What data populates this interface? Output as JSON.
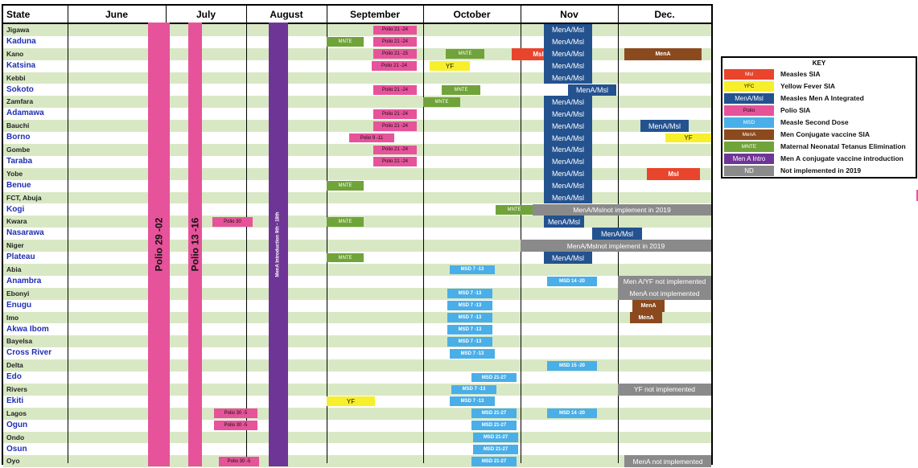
{
  "headers": {
    "state": "State",
    "months": [
      "June",
      "July",
      "August",
      "September",
      "October",
      "Nov",
      "Dec."
    ]
  },
  "states": [
    {
      "name": "Jigawa",
      "blue": false
    },
    {
      "name": "Kaduna",
      "blue": true
    },
    {
      "name": "Kano",
      "blue": false
    },
    {
      "name": "Katsina",
      "blue": true
    },
    {
      "name": "Kebbi",
      "blue": false
    },
    {
      "name": "Sokoto",
      "blue": true
    },
    {
      "name": "Zamfara",
      "blue": false
    },
    {
      "name": "Adamawa",
      "blue": true
    },
    {
      "name": "Bauchi",
      "blue": false
    },
    {
      "name": "Borno",
      "blue": true
    },
    {
      "name": "Gombe",
      "blue": false
    },
    {
      "name": "Taraba",
      "blue": true
    },
    {
      "name": "Yobe",
      "blue": false
    },
    {
      "name": "Benue",
      "blue": true
    },
    {
      "name": "FCT, Abuja",
      "blue": false
    },
    {
      "name": "Kogi",
      "blue": true
    },
    {
      "name": "Kwara",
      "blue": false
    },
    {
      "name": "Nasarawa",
      "blue": true
    },
    {
      "name": "Niger",
      "blue": false
    },
    {
      "name": "Plateau",
      "blue": true
    },
    {
      "name": "Abia",
      "blue": false
    },
    {
      "name": "Anambra",
      "blue": true
    },
    {
      "name": "Ebonyi",
      "blue": false
    },
    {
      "name": "Enugu",
      "blue": true
    },
    {
      "name": "Imo",
      "blue": false
    },
    {
      "name": "Akwa Ibom",
      "blue": true
    },
    {
      "name": "Bayelsa",
      "blue": false
    },
    {
      "name": "Cross River",
      "blue": true
    },
    {
      "name": "Delta",
      "blue": false
    },
    {
      "name": "Edo",
      "blue": true
    },
    {
      "name": "Rivers",
      "blue": false
    },
    {
      "name": "Ekiti",
      "blue": true
    },
    {
      "name": "Lagos",
      "blue": false
    },
    {
      "name": "Ogun",
      "blue": true
    },
    {
      "name": "Ondo",
      "blue": false
    },
    {
      "name": "Osun",
      "blue": true
    },
    {
      "name": "Oyo",
      "blue": false
    }
  ],
  "vertical_bars": [
    {
      "label": "Polio 29 -02",
      "type": "polio"
    },
    {
      "label": "Polio 13 -16",
      "type": "polio"
    },
    {
      "label": "MenA Introduction 9th - 18th",
      "type": "menintro"
    }
  ],
  "events": [
    {
      "row": 0,
      "type": "polio",
      "label": "Polio 21 -24",
      "month": "September"
    },
    {
      "row": 0,
      "type": "mena",
      "label": "MenA/Msl",
      "month": "Nov"
    },
    {
      "row": 1,
      "type": "mnte",
      "label": "MNTE",
      "month": "September"
    },
    {
      "row": 1,
      "type": "polio",
      "label": "Polio 21 -24",
      "month": "September"
    },
    {
      "row": 1,
      "type": "mena",
      "label": "MenA/Msl",
      "month": "Nov"
    },
    {
      "row": 2,
      "type": "polio",
      "label": "Polio 21 -15",
      "month": "September"
    },
    {
      "row": 2,
      "type": "mnte",
      "label": "MNTE",
      "month": "October"
    },
    {
      "row": 2,
      "type": "measles",
      "label": "Msl",
      "month": "Nov"
    },
    {
      "row": 2,
      "type": "mena",
      "label": "MenA/Msl",
      "month": "Nov"
    },
    {
      "row": 2,
      "type": "menconj",
      "label": "MenA",
      "month": "Dec."
    },
    {
      "row": 3,
      "type": "polio",
      "label": "Polio 21 -24",
      "month": "September"
    },
    {
      "row": 3,
      "type": "yf",
      "label": "YF",
      "month": "October"
    },
    {
      "row": 3,
      "type": "mena",
      "label": "MenA/Msl",
      "month": "Nov"
    },
    {
      "row": 4,
      "type": "mena",
      "label": "MenA/Msl",
      "month": "Nov"
    },
    {
      "row": 5,
      "type": "polio",
      "label": "Polio 21 -24",
      "month": "September"
    },
    {
      "row": 5,
      "type": "mnte",
      "label": "MNTE",
      "month": "October"
    },
    {
      "row": 5,
      "type": "mena",
      "label": "MenA/Msl",
      "month": "Nov"
    },
    {
      "row": 6,
      "type": "mnte",
      "label": "MNTE",
      "month": "October"
    },
    {
      "row": 6,
      "type": "mena",
      "label": "MenA/Msl",
      "month": "Nov"
    },
    {
      "row": 7,
      "type": "polio",
      "label": "Polio 21 -24",
      "month": "September"
    },
    {
      "row": 7,
      "type": "mena",
      "label": "MenA/Msl",
      "month": "Nov"
    },
    {
      "row": 8,
      "type": "polio",
      "label": "Polio 21 -24",
      "month": "September"
    },
    {
      "row": 8,
      "type": "mena",
      "label": "MenA/Msl",
      "month": "Nov"
    },
    {
      "row": 8,
      "type": "mena",
      "label": "MenA/Msl",
      "month": "Dec."
    },
    {
      "row": 9,
      "type": "polio",
      "label": "Polio 9 -11",
      "month": "September"
    },
    {
      "row": 9,
      "type": "mena",
      "label": "MenA/Msl",
      "month": "Nov"
    },
    {
      "row": 9,
      "type": "yf",
      "label": "YF",
      "month": "Dec."
    },
    {
      "row": 10,
      "type": "polio",
      "label": "Polio 21 -24",
      "month": "September"
    },
    {
      "row": 10,
      "type": "mena",
      "label": "MenA/Msl",
      "month": "Nov"
    },
    {
      "row": 11,
      "type": "polio",
      "label": "Polio 21 -24",
      "month": "September"
    },
    {
      "row": 11,
      "type": "mena",
      "label": "MenA/Msl",
      "month": "Nov"
    },
    {
      "row": 12,
      "type": "mena",
      "label": "MenA/Msl",
      "month": "Nov"
    },
    {
      "row": 12,
      "type": "measles",
      "label": "Msl",
      "month": "Dec."
    },
    {
      "row": 13,
      "type": "mnte",
      "label": "MNTE",
      "month": "September"
    },
    {
      "row": 13,
      "type": "mena",
      "label": "MenA/Msl",
      "month": "Nov"
    },
    {
      "row": 14,
      "type": "mena",
      "label": "MenA/Msl",
      "month": "Nov"
    },
    {
      "row": 15,
      "type": "mnte",
      "label": "MNTE",
      "month": "October"
    },
    {
      "row": 15,
      "type": "nd",
      "label": "MenA/Mslnot implement in 2019",
      "month": "Nov"
    },
    {
      "row": 16,
      "type": "polio",
      "label": "Polio 30",
      "month": "July"
    },
    {
      "row": 16,
      "type": "mnte",
      "label": "MNTE",
      "month": "September"
    },
    {
      "row": 16,
      "type": "mena",
      "label": "MenA/Msl",
      "month": "Nov"
    },
    {
      "row": 17,
      "type": "mena",
      "label": "MenA/Msl",
      "month": "Nov"
    },
    {
      "row": 18,
      "type": "nd",
      "label": "MenA/Mslnot implement in 2019",
      "month": "Nov"
    },
    {
      "row": 19,
      "type": "mnte",
      "label": "MNTE",
      "month": "September"
    },
    {
      "row": 19,
      "type": "mena",
      "label": "MenA/Msl",
      "month": "Nov"
    },
    {
      "row": 20,
      "type": "msd",
      "label": "MSD 7 -13",
      "month": "October"
    },
    {
      "row": 21,
      "type": "msd",
      "label": "MSD 14 -20",
      "month": "Nov"
    },
    {
      "row": 21,
      "type": "nd",
      "label": "Men A/YF not implemented",
      "month": "Dec."
    },
    {
      "row": 22,
      "type": "msd",
      "label": "MSD 7 -13",
      "month": "October"
    },
    {
      "row": 22,
      "type": "nd",
      "label": "MenA not implemented",
      "month": "Dec."
    },
    {
      "row": 23,
      "type": "msd",
      "label": "MSD 7 -13",
      "month": "October"
    },
    {
      "row": 23,
      "type": "menconj",
      "label": "MenA",
      "month": "Dec."
    },
    {
      "row": 24,
      "type": "msd",
      "label": "MSD 7 -13",
      "month": "October"
    },
    {
      "row": 24,
      "type": "menconj",
      "label": "MenA",
      "month": "Dec."
    },
    {
      "row": 25,
      "type": "msd",
      "label": "MSD 7 -13",
      "month": "October"
    },
    {
      "row": 26,
      "type": "msd",
      "label": "MSD 7 -13",
      "month": "October"
    },
    {
      "row": 27,
      "type": "msd",
      "label": "MSD 7 -13",
      "month": "October"
    },
    {
      "row": 28,
      "type": "msd",
      "label": "MSD 15 -20",
      "month": "Nov"
    },
    {
      "row": 29,
      "type": "msd",
      "label": "MSD 21-27",
      "month": "October"
    },
    {
      "row": 30,
      "type": "msd",
      "label": "MSD 7 -13",
      "month": "October"
    },
    {
      "row": 30,
      "type": "nd",
      "label": "YF not implemented",
      "month": "Dec."
    },
    {
      "row": 31,
      "type": "yf",
      "label": "YF",
      "month": "September"
    },
    {
      "row": 31,
      "type": "msd",
      "label": "MSD 7 -13",
      "month": "October"
    },
    {
      "row": 32,
      "type": "polio",
      "label": "Polio 30 -5",
      "month": "July"
    },
    {
      "row": 32,
      "type": "msd",
      "label": "MSD 21-27",
      "month": "October"
    },
    {
      "row": 32,
      "type": "msd",
      "label": "MSD 14 -20",
      "month": "Nov"
    },
    {
      "row": 33,
      "type": "polio",
      "label": "Polio 30 -5",
      "month": "July"
    },
    {
      "row": 33,
      "type": "msd",
      "label": "MSD 21-27",
      "month": "October"
    },
    {
      "row": 34,
      "type": "msd",
      "label": "MSD 21-27",
      "month": "October"
    },
    {
      "row": 35,
      "type": "msd",
      "label": "MSD 21-27",
      "month": "October"
    },
    {
      "row": 36,
      "type": "polio",
      "label": "Polio 30 -5",
      "month": "July"
    },
    {
      "row": 36,
      "type": "msd",
      "label": "MSD 21-27",
      "month": "October"
    },
    {
      "row": 36,
      "type": "nd",
      "label": "MenA not implemented",
      "month": "Dec."
    }
  ],
  "key": {
    "title": "KEY",
    "items": [
      {
        "swatch": "Msl",
        "type": "measles",
        "label": "Measles SIA"
      },
      {
        "swatch": "YFC",
        "type": "yf",
        "label": "Yellow Fever  SIA"
      },
      {
        "swatch": "MenA/Msl",
        "type": "mena",
        "label": "Measles Men A Integrated"
      },
      {
        "swatch": "Polio",
        "type": "polio",
        "label": "Polio SIA"
      },
      {
        "swatch": "MSD",
        "type": "msd",
        "label": "Measle Second Dose"
      },
      {
        "swatch": "MenA",
        "type": "menconj",
        "label": "Men Conjugate vaccine SIA"
      },
      {
        "swatch": "MNTE",
        "type": "mnte",
        "label": "Maternal Neonatal Tetanus Elimination"
      },
      {
        "swatch": "Men A Intro",
        "type": "menintro",
        "label": "Men A conjugate vaccine introduction"
      },
      {
        "swatch": "ND",
        "type": "nd",
        "label": "Not implemented in 2019"
      }
    ]
  },
  "colors": {
    "row_shade": "#d8e8c4",
    "polio": "#e6539a",
    "msd": "#4aaee8",
    "mnte": "#70a33a",
    "mena": "#23528f",
    "measles": "#e8452c",
    "yf": "#f7ef2b",
    "menconj": "#8b4a1e",
    "nd": "#8a8a8a",
    "menintro": "#6f3596"
  }
}
